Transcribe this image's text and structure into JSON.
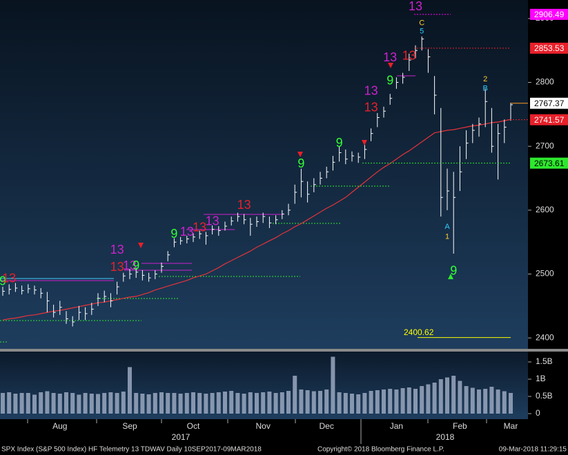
{
  "chart_data": [
    {
      "type": "ohlc",
      "categories": [
        null,
        null,
        null,
        null,
        null,
        null,
        null,
        null,
        null,
        "Aug",
        null,
        null,
        null,
        null,
        null,
        null,
        null,
        null,
        null,
        null,
        "Sep",
        null,
        null,
        null,
        null,
        null,
        null,
        null,
        null,
        null,
        "Oct",
        null,
        null,
        null,
        null,
        null,
        null,
        null,
        null,
        null,
        null,
        "Nov",
        null,
        null,
        null,
        null,
        null,
        null,
        null,
        null,
        null,
        "Dec",
        null,
        null,
        null,
        null,
        null,
        null,
        null,
        null,
        null,
        null,
        "Jan",
        null,
        null,
        null,
        null,
        null,
        null,
        null,
        null,
        null,
        "Feb",
        null,
        null,
        null,
        null,
        null,
        null,
        null,
        "Mar"
      ],
      "high": [
        2480,
        2484,
        2486,
        2482,
        2484,
        2482,
        2478,
        2472,
        2452,
        2458,
        2442,
        2434,
        2450,
        2448,
        2455,
        2470,
        2474,
        2470,
        2488,
        2502,
        2508,
        2510,
        2506,
        2502,
        2506,
        2518,
        2536,
        2556,
        2558,
        2560,
        2564,
        2568,
        2566,
        2576,
        2575,
        2582,
        2590,
        2596,
        2594,
        2588,
        2590,
        2596,
        2590,
        2592,
        2600,
        2610,
        2640,
        2665,
        2645,
        2650,
        2660,
        2668,
        2685,
        2700,
        2695,
        2692,
        2690,
        2702,
        2728,
        2752,
        2762,
        2782,
        2808,
        2815,
        2845,
        2858,
        2872,
        2852,
        2810,
        2760,
        2665,
        2660,
        2700,
        2725,
        2735,
        2745,
        2790,
        2760,
        2735,
        2742,
        2768
      ],
      "low": [
        2466,
        2468,
        2472,
        2468,
        2470,
        2468,
        2462,
        2440,
        2432,
        2436,
        2422,
        2418,
        2428,
        2428,
        2436,
        2450,
        2456,
        2448,
        2468,
        2488,
        2492,
        2494,
        2490,
        2488,
        2492,
        2502,
        2520,
        2542,
        2546,
        2548,
        2550,
        2555,
        2546,
        2562,
        2560,
        2568,
        2576,
        2582,
        2578,
        2560,
        2574,
        2580,
        2572,
        2578,
        2586,
        2592,
        2610,
        2620,
        2612,
        2628,
        2640,
        2650,
        2662,
        2676,
        2672,
        2676,
        2674,
        2680,
        2708,
        2730,
        2745,
        2765,
        2790,
        2798,
        2818,
        2838,
        2850,
        2815,
        2750,
        2590,
        2600,
        2532,
        2630,
        2680,
        2705,
        2715,
        2730,
        2690,
        2648,
        2705,
        2740
      ],
      "values": [
        2473,
        2476,
        2478,
        2474,
        2477,
        2475,
        2470,
        2458,
        2440,
        2448,
        2430,
        2425,
        2440,
        2438,
        2445,
        2462,
        2465,
        2458,
        2480,
        2497,
        2500,
        2503,
        2498,
        2494,
        2500,
        2512,
        2530,
        2550,
        2552,
        2555,
        2558,
        2563,
        2560,
        2570,
        2568,
        2575,
        2583,
        2590,
        2585,
        2578,
        2582,
        2590,
        2580,
        2585,
        2594,
        2600,
        2628,
        2645,
        2625,
        2640,
        2650,
        2660,
        2675,
        2690,
        2680,
        2685,
        2683,
        2695,
        2720,
        2745,
        2755,
        2775,
        2800,
        2808,
        2835,
        2850,
        2868,
        2840,
        2780,
        2620,
        2630,
        2620,
        2660,
        2705,
        2725,
        2735,
        2770,
        2700,
        2720,
        2730,
        2765
      ],
      "color": "#ffffff",
      "moving_average": [
        2428,
        2430,
        2431,
        2433,
        2435,
        2436,
        2438,
        2440,
        2442,
        2443,
        2445,
        2447,
        2449,
        2451,
        2453,
        2455,
        2456,
        2458,
        2460,
        2462,
        2464,
        2465,
        2468,
        2471,
        2475,
        2478,
        2481,
        2484,
        2487,
        2490,
        2494,
        2497,
        2500,
        2505,
        2510,
        2516,
        2521,
        2526,
        2531,
        2536,
        2542,
        2547,
        2552,
        2557,
        2563,
        2568,
        2574,
        2579,
        2585,
        2591,
        2597,
        2603,
        2608,
        2614,
        2620,
        2628,
        2636,
        2644,
        2652,
        2660,
        2667,
        2673,
        2680,
        2687,
        2693,
        2700,
        2707,
        2714,
        2721,
        2723,
        2725,
        2726,
        2728,
        2730,
        2732,
        2733,
        2735,
        2737,
        2738,
        2740,
        2742
      ],
      "moving_average_color": "#e8333a",
      "ylim": [
        2384,
        2929
      ],
      "yticks": [
        2400,
        2500,
        2600,
        2700,
        2800,
        2900
      ],
      "grid": false,
      "levels": [
        {
          "value": 2906.49,
          "color": "#ff00ff"
        },
        {
          "value": 2853.53,
          "color": "#e8202a"
        },
        {
          "value": 2767.37,
          "color": "#ffffff"
        },
        {
          "value": 2741.57,
          "color": "#e8202a"
        },
        {
          "value": 2673.61,
          "color": "#2ee82e"
        }
      ],
      "low_marker": {
        "value": 2400.62,
        "color": "#ffff00"
      },
      "annotations": [
        {
          "text": "9",
          "bar": 0,
          "price": 2488,
          "color": "#33ff33"
        },
        {
          "text": "13",
          "bar": 1,
          "price": 2492,
          "color": "#e8202a"
        },
        {
          "text": "13",
          "bar": 18,
          "price": 2537,
          "color": "#cc22cc"
        },
        {
          "text": "13",
          "bar": 18,
          "price": 2510,
          "color": "#e8202a"
        },
        {
          "text": "13",
          "bar": 20,
          "price": 2512,
          "color": "#cc22cc"
        },
        {
          "text": "9",
          "bar": 21,
          "price": 2512,
          "color": "#33ff33"
        },
        {
          "text": "9",
          "bar": 27,
          "price": 2562,
          "color": "#33ff33"
        },
        {
          "text": "13",
          "bar": 29,
          "price": 2565,
          "color": "#cc22cc"
        },
        {
          "text": "13",
          "bar": 31,
          "price": 2572,
          "color": "#e8202a"
        },
        {
          "text": "13",
          "bar": 33,
          "price": 2582,
          "color": "#cc22cc"
        },
        {
          "text": "13",
          "bar": 38,
          "price": 2607,
          "color": "#e8202a"
        },
        {
          "text": "9",
          "bar": 47,
          "price": 2672,
          "color": "#33ff33"
        },
        {
          "text": "9",
          "bar": 53,
          "price": 2704,
          "color": "#33ff33"
        },
        {
          "text": "13",
          "bar": 58,
          "price": 2760,
          "color": "#e8202a"
        },
        {
          "text": "13",
          "bar": 58,
          "price": 2786,
          "color": "#cc22cc"
        },
        {
          "text": "9",
          "bar": 61,
          "price": 2802,
          "color": "#33ff33"
        },
        {
          "text": "13",
          "bar": 61,
          "price": 2838,
          "color": "#cc22cc"
        },
        {
          "text": "13",
          "bar": 64,
          "price": 2841,
          "color": "#e8202a"
        },
        {
          "text": "13",
          "bar": 65,
          "price": 2918,
          "color": "#cc22cc"
        },
        {
          "text": "C",
          "bar": 66,
          "price": 2893,
          "color": "#ffcc33"
        },
        {
          "text": "5",
          "bar": 66,
          "price": 2880,
          "color": "#33ccff"
        },
        {
          "text": "A",
          "bar": 70,
          "price": 2574,
          "color": "#33ccff"
        },
        {
          "text": "1",
          "bar": 70,
          "price": 2558,
          "color": "#ffcc33"
        },
        {
          "text": "9",
          "bar": 71,
          "price": 2504,
          "color": "#33ff33"
        },
        {
          "text": "2",
          "bar": 76,
          "price": 2805,
          "color": "#ffcc33"
        },
        {
          "text": "B",
          "bar": 76,
          "price": 2790,
          "color": "#33ccff"
        }
      ]
    },
    {
      "type": "bar",
      "values": [
        0.6,
        0.62,
        0.58,
        0.6,
        0.6,
        0.55,
        0.62,
        0.65,
        0.6,
        0.58,
        0.62,
        0.6,
        0.55,
        0.6,
        0.58,
        0.57,
        0.6,
        0.62,
        0.6,
        0.64,
        1.35,
        0.6,
        0.58,
        0.56,
        0.6,
        0.62,
        0.6,
        0.6,
        0.58,
        0.6,
        0.62,
        0.6,
        0.58,
        0.6,
        0.62,
        0.64,
        0.66,
        0.6,
        0.58,
        0.62,
        0.6,
        0.62,
        0.64,
        0.6,
        0.62,
        0.66,
        1.1,
        0.7,
        0.68,
        0.65,
        0.66,
        0.7,
        1.65,
        0.62,
        0.6,
        0.58,
        0.56,
        0.6,
        0.66,
        0.68,
        0.7,
        0.72,
        0.7,
        0.74,
        0.76,
        0.72,
        0.8,
        0.85,
        0.9,
        1.0,
        1.05,
        1.1,
        0.95,
        0.8,
        0.75,
        0.7,
        0.72,
        0.78,
        0.7,
        0.65,
        0.6
      ],
      "color": "#9aa8c0",
      "ylim": [
        0,
        1.8
      ],
      "yticks": [
        0,
        {
          "value": 0.5,
          "label": "0.5B"
        },
        {
          "value": 1,
          "label": "1B"
        },
        {
          "value": 1.5,
          "label": "1.5B"
        }
      ]
    }
  ],
  "years": [
    "2017",
    "2018"
  ],
  "footer": {
    "left": "SPX Index (S&P 500 Index) HF Telemetry 13 TDWAV  Daily 10SEP2017-09MAR2018",
    "center": "Copyright© 2018 Bloomberg Finance L.P.",
    "right": "09-Mar-2018 11:29:15"
  }
}
